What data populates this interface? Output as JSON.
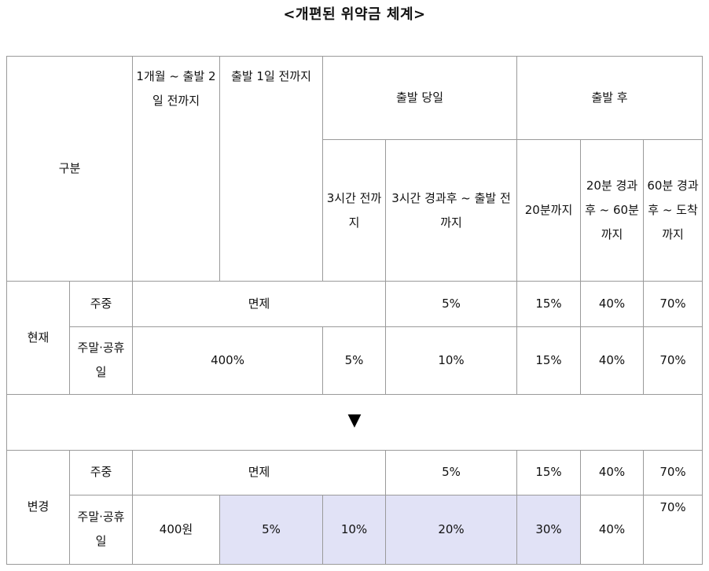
{
  "title": "<개편된 위약금 체계>",
  "header": {
    "category": "구분",
    "col_month": "1개월 ~ 출발 2일 전까지",
    "col_day_before": "출발 1일 전까지",
    "group_same_day": "출발 당일",
    "group_after": "출발 후",
    "col_3h_before": "3시간 전까지",
    "col_3h_after": "3시간 경과후 ~ 출발 전까지",
    "col_20min": "20분까지",
    "col_20_60": "20분 경과후 ~ 60분까지",
    "col_60_arrival": "60분 경과후 ~ 도착까지"
  },
  "current": {
    "label": "현재",
    "weekday": {
      "label": "주중",
      "exempt": "면제",
      "after3h": "5%",
      "min20": "15%",
      "min20_60": "40%",
      "min60": "70%"
    },
    "weekend": {
      "label": "주말·공휴일",
      "before_day": "400%",
      "before3h": "5%",
      "after3h": "10%",
      "min20": "15%",
      "min20_60": "40%",
      "min60": "70%"
    }
  },
  "arrow": "▼",
  "changed": {
    "label": "변경",
    "weekday": {
      "label": "주중",
      "exempt": "면제",
      "after3h": "5%",
      "min20": "15%",
      "min20_60": "40%",
      "min60": "70%"
    },
    "weekend": {
      "label": "주말·공휴일",
      "month": "400원",
      "day_before": "5%",
      "before3h": "10%",
      "after3h": "20%",
      "min20": "30%",
      "min20_60": "40%",
      "min60": "70%"
    }
  }
}
